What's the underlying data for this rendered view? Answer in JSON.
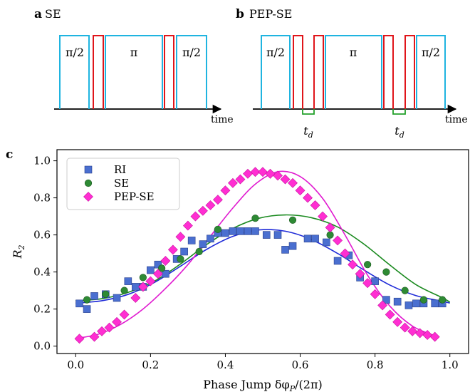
{
  "panels": {
    "a": {
      "letter": "a",
      "title": "SE",
      "pulses": [
        "π/2",
        "π",
        "π/2"
      ],
      "axis_label": "time"
    },
    "b": {
      "letter": "b",
      "title": "PEP-SE",
      "pulses": [
        "π/2",
        "π",
        "π/2"
      ],
      "axis_label": "time",
      "delay_label": "t",
      "delay_sub": "d"
    },
    "c": {
      "letter": "c"
    }
  },
  "colors": {
    "pulse_cyan": "#1fb4e0",
    "pulse_red": "#e0151a",
    "delay_green": "#22a02a"
  },
  "chart_data": {
    "type": "scatter",
    "xlabel": "Phase Jump δφ_P/(2π)",
    "ylabel": "R_2",
    "xlim": [
      -0.05,
      1.05
    ],
    "ylim": [
      -0.04,
      1.06
    ],
    "xticks": [
      "0.0",
      "0.2",
      "0.4",
      "0.6",
      "0.8",
      "1.0"
    ],
    "yticks": [
      "0.0",
      "0.2",
      "0.4",
      "0.6",
      "0.8",
      "1.0"
    ],
    "grid": false,
    "legend": "top-left",
    "series": [
      {
        "name": "RI",
        "marker": "square",
        "color": "#4a6fd0",
        "line_color": "#1f2bd8",
        "x": [
          0.01,
          0.03,
          0.05,
          0.08,
          0.11,
          0.14,
          0.16,
          0.18,
          0.2,
          0.22,
          0.24,
          0.27,
          0.29,
          0.31,
          0.34,
          0.36,
          0.38,
          0.4,
          0.42,
          0.44,
          0.46,
          0.48,
          0.51,
          0.54,
          0.56,
          0.58,
          0.62,
          0.64,
          0.67,
          0.7,
          0.73,
          0.76,
          0.8,
          0.83,
          0.86,
          0.89,
          0.91,
          0.93,
          0.96,
          0.98
        ],
        "y": [
          0.23,
          0.2,
          0.27,
          0.28,
          0.26,
          0.35,
          0.32,
          0.32,
          0.41,
          0.44,
          0.39,
          0.47,
          0.51,
          0.57,
          0.55,
          0.58,
          0.61,
          0.61,
          0.62,
          0.62,
          0.62,
          0.62,
          0.6,
          0.6,
          0.52,
          0.54,
          0.58,
          0.58,
          0.56,
          0.46,
          0.49,
          0.37,
          0.35,
          0.25,
          0.24,
          0.22,
          0.23,
          0.23,
          0.23,
          0.23
        ],
        "fit_y": [
          0.232,
          0.245,
          0.279,
          0.343,
          0.431,
          0.522,
          0.592,
          0.627,
          0.62,
          0.575,
          0.5,
          0.411,
          0.329,
          0.272,
          0.242,
          0.232
        ]
      },
      {
        "name": "SE",
        "marker": "circle",
        "color": "#2e8a34",
        "line_color": "#1a8a1f",
        "x": [
          0.03,
          0.08,
          0.13,
          0.18,
          0.23,
          0.28,
          0.33,
          0.38,
          0.48,
          0.58,
          0.68,
          0.78,
          0.83,
          0.88,
          0.93,
          0.98
        ],
        "y": [
          0.25,
          0.28,
          0.3,
          0.37,
          0.42,
          0.47,
          0.51,
          0.63,
          0.69,
          0.68,
          0.6,
          0.44,
          0.4,
          0.3,
          0.25,
          0.25
        ],
        "fit_y": [
          0.245,
          0.256,
          0.29,
          0.35,
          0.443,
          0.548,
          0.635,
          0.69,
          0.708,
          0.693,
          0.643,
          0.551,
          0.437,
          0.331,
          0.261,
          0.237
        ]
      },
      {
        "name": "PEP-SE",
        "marker": "diamond",
        "color": "#ff2ed2",
        "line_color": "#e01ad0",
        "x": [
          0.01,
          0.05,
          0.07,
          0.09,
          0.11,
          0.13,
          0.16,
          0.18,
          0.2,
          0.22,
          0.24,
          0.26,
          0.28,
          0.3,
          0.32,
          0.34,
          0.36,
          0.38,
          0.4,
          0.42,
          0.44,
          0.46,
          0.48,
          0.5,
          0.52,
          0.54,
          0.56,
          0.58,
          0.6,
          0.62,
          0.64,
          0.66,
          0.68,
          0.7,
          0.72,
          0.74,
          0.76,
          0.78,
          0.8,
          0.82,
          0.84,
          0.86,
          0.88,
          0.9,
          0.92,
          0.94,
          0.96
        ],
        "y": [
          0.04,
          0.05,
          0.08,
          0.1,
          0.13,
          0.17,
          0.26,
          0.32,
          0.35,
          0.39,
          0.46,
          0.52,
          0.59,
          0.65,
          0.7,
          0.73,
          0.76,
          0.79,
          0.84,
          0.88,
          0.9,
          0.93,
          0.94,
          0.94,
          0.93,
          0.92,
          0.9,
          0.88,
          0.84,
          0.8,
          0.76,
          0.7,
          0.64,
          0.57,
          0.5,
          0.44,
          0.39,
          0.34,
          0.28,
          0.22,
          0.17,
          0.13,
          0.1,
          0.08,
          0.07,
          0.06,
          0.05
        ],
        "fit_y": [
          0.041,
          0.064,
          0.117,
          0.2,
          0.311,
          0.44,
          0.593,
          0.745,
          0.874,
          0.941,
          0.915,
          0.797,
          0.599,
          0.383,
          0.215,
          0.108,
          0.056
        ]
      }
    ],
    "fit_x": {
      "RI": [
        0.0,
        0.07,
        0.14,
        0.21,
        0.28,
        0.35,
        0.42,
        0.49,
        0.56,
        0.63,
        0.7,
        0.77,
        0.84,
        0.91,
        0.98,
        1.0
      ],
      "SE": [
        0.0,
        0.07,
        0.14,
        0.21,
        0.28,
        0.35,
        0.42,
        0.49,
        0.56,
        0.63,
        0.7,
        0.77,
        0.84,
        0.91,
        0.98,
        1.0
      ],
      "PEP-SE": [
        0.0,
        0.06,
        0.12,
        0.18,
        0.24,
        0.3,
        0.36,
        0.42,
        0.48,
        0.54,
        0.6,
        0.66,
        0.72,
        0.78,
        0.84,
        0.9,
        0.96
      ]
    }
  }
}
